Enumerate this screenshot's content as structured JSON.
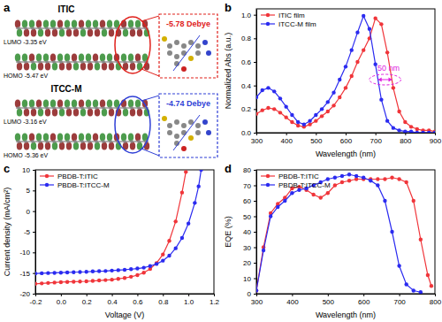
{
  "diagram": {
    "title": "a",
    "molecules": [
      {
        "name": "ITIC",
        "lumo": "LUMO -3.35 eV",
        "homo": "HOMO -5.47 eV",
        "dipole": "-5.78 Debye",
        "color": "#e0201b"
      },
      {
        "name": "ITCC-M",
        "lumo": "LUMO -3.16 eV",
        "homo": "HOMO -5.36 eV",
        "dipole": "-4.74 Debye",
        "color": "#2f3fd6"
      }
    ]
  },
  "chart_data": [
    {
      "type": "line",
      "title": "b",
      "x_label": "Wavelength (nm)",
      "y_label": "Normalized Abs (a.u.)",
      "xlim": [
        300,
        900
      ],
      "xticks": [
        300,
        400,
        500,
        600,
        700,
        800,
        900
      ],
      "ylim": [
        0,
        1.05
      ],
      "yticks": [
        {
          "value": 0,
          "label": "0.0"
        },
        0.2,
        0.4,
        0.6,
        0.8,
        {
          "value": 1,
          "label": "1.0"
        }
      ],
      "legend": "upper-left",
      "annotations": [
        "50 nm"
      ],
      "series": [
        {
          "name": "ITIC film",
          "color": "#f0353a",
          "marker": "circle",
          "line_style": "solid",
          "x": [
            300,
            320,
            340,
            360,
            380,
            400,
            420,
            440,
            460,
            480,
            500,
            520,
            540,
            560,
            580,
            600,
            620,
            640,
            660,
            680,
            700,
            720,
            740,
            760,
            780,
            800,
            820,
            840,
            860,
            880,
            900
          ],
          "values": [
            0.16,
            0.19,
            0.21,
            0.2,
            0.17,
            0.13,
            0.09,
            0.06,
            0.05,
            0.07,
            0.1,
            0.14,
            0.18,
            0.23,
            0.3,
            0.38,
            0.48,
            0.6,
            0.7,
            0.8,
            0.97,
            0.92,
            0.68,
            0.38,
            0.18,
            0.09,
            0.05,
            0.03,
            0.02,
            0.02,
            0.01
          ]
        },
        {
          "name": "ITCC-M film",
          "color": "#2b2bf0",
          "marker": "circle",
          "line_style": "solid",
          "x": [
            300,
            320,
            340,
            360,
            380,
            400,
            420,
            440,
            460,
            480,
            500,
            520,
            540,
            560,
            580,
            600,
            620,
            640,
            660,
            680,
            700,
            720,
            740,
            760,
            780,
            800,
            820,
            840,
            860,
            880,
            900
          ],
          "values": [
            0.3,
            0.36,
            0.38,
            0.35,
            0.29,
            0.22,
            0.15,
            0.09,
            0.07,
            0.1,
            0.15,
            0.2,
            0.26,
            0.34,
            0.45,
            0.56,
            0.7,
            0.85,
            0.99,
            0.88,
            0.58,
            0.28,
            0.1,
            0.04,
            0.02,
            0.01,
            0.01,
            0,
            0,
            0,
            0
          ]
        }
      ]
    },
    {
      "type": "line",
      "title": "c",
      "x_label": "Voltage (V)",
      "y_label": "Current density (mA/cm²)",
      "xlim": [
        -0.2,
        1.2
      ],
      "xticks": [
        -0.2,
        {
          "value": 0,
          "label": "0.0"
        },
        0.2,
        0.4,
        0.6,
        0.8,
        {
          "value": 1,
          "label": "1.0"
        },
        1.2
      ],
      "ylim": [
        -20,
        10
      ],
      "yticks": [
        -20,
        -15,
        -10,
        -5,
        0,
        5,
        10
      ],
      "legend": "upper-left",
      "series": [
        {
          "name": "PBDB-T:ITIC",
          "color": "#f0353a",
          "marker": "circle",
          "line_style": "solid",
          "x": [
            -0.2,
            -0.15,
            -0.1,
            -0.05,
            0,
            0.05,
            0.1,
            0.15,
            0.2,
            0.25,
            0.3,
            0.35,
            0.4,
            0.45,
            0.5,
            0.55,
            0.6,
            0.65,
            0.7,
            0.75,
            0.8,
            0.85,
            0.9,
            0.95,
            0.98
          ],
          "values": [
            -17.6,
            -17.5,
            -17.4,
            -17.3,
            -17.2,
            -17.15,
            -17.1,
            -17.05,
            -17.0,
            -16.9,
            -16.8,
            -16.7,
            -16.6,
            -16.4,
            -16.2,
            -15.9,
            -15.5,
            -14.9,
            -14.0,
            -12.6,
            -10.5,
            -7.2,
            -2.5,
            4.5,
            9.5
          ]
        },
        {
          "name": "PBDB-T:ITCC-M",
          "color": "#2b2bf0",
          "marker": "circle",
          "line_style": "solid",
          "x": [
            -0.2,
            -0.15,
            -0.1,
            -0.05,
            0,
            0.05,
            0.1,
            0.15,
            0.2,
            0.25,
            0.3,
            0.35,
            0.4,
            0.45,
            0.5,
            0.55,
            0.6,
            0.65,
            0.7,
            0.75,
            0.8,
            0.85,
            0.9,
            0.95,
            1.0,
            1.05,
            1.08,
            1.1
          ],
          "values": [
            -15.1,
            -15.05,
            -15.0,
            -14.95,
            -14.9,
            -14.85,
            -14.8,
            -14.75,
            -14.7,
            -14.6,
            -14.55,
            -14.5,
            -14.4,
            -14.3,
            -14.2,
            -14.05,
            -13.9,
            -13.7,
            -13.3,
            -12.8,
            -12.0,
            -10.8,
            -9.0,
            -6.5,
            -3.0,
            2.0,
            6.0,
            10.0
          ]
        }
      ]
    },
    {
      "type": "line",
      "title": "d",
      "x_label": "Wavelength (nm)",
      "y_label": "EQE (%)",
      "xlim": [
        300,
        800
      ],
      "xticks": [
        300,
        400,
        500,
        600,
        700,
        800
      ],
      "ylim": [
        0,
        80
      ],
      "yticks": [
        0,
        10,
        20,
        30,
        40,
        50,
        60,
        70,
        80
      ],
      "legend": "upper-left",
      "series": [
        {
          "name": "PBDB-T:ITIC",
          "color": "#f0353a",
          "marker": "circle",
          "line_style": "solid",
          "x": [
            300,
            320,
            340,
            360,
            380,
            400,
            420,
            440,
            460,
            480,
            500,
            520,
            540,
            560,
            580,
            600,
            620,
            640,
            660,
            680,
            700,
            720,
            740,
            760,
            780,
            790
          ],
          "values": [
            2,
            30,
            52,
            58,
            62,
            68,
            69,
            67,
            64,
            62,
            65,
            70,
            72,
            73,
            74,
            74,
            74,
            74,
            74,
            75,
            74,
            72,
            60,
            35,
            12,
            5
          ]
        },
        {
          "name": "PBDB-T:ITCC-M",
          "color": "#2b2bf0",
          "marker": "circle",
          "line_style": "solid",
          "x": [
            300,
            320,
            340,
            360,
            380,
            400,
            420,
            440,
            460,
            480,
            500,
            520,
            540,
            560,
            580,
            600,
            620,
            640,
            660,
            680,
            700,
            720,
            740,
            760
          ],
          "values": [
            2,
            28,
            50,
            56,
            60,
            65,
            67,
            68,
            70,
            72,
            74,
            75,
            76,
            77,
            76,
            75,
            73,
            70,
            60,
            40,
            18,
            6,
            2,
            1
          ]
        }
      ]
    }
  ]
}
